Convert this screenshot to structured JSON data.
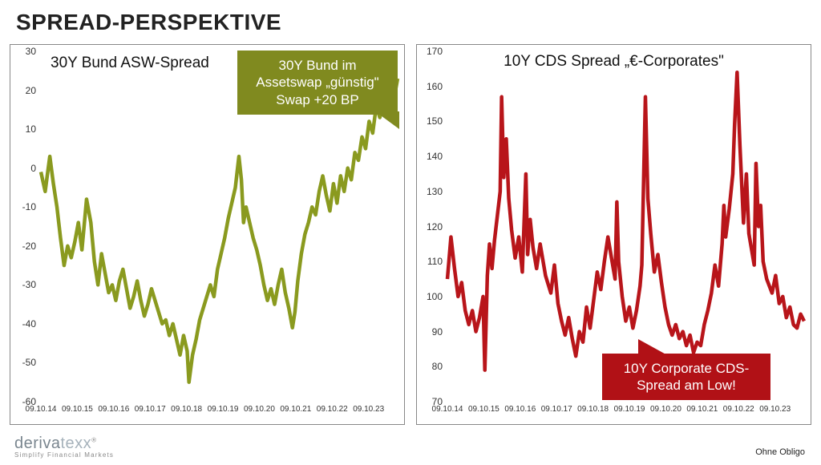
{
  "page": {
    "title": "SPREAD-PERSPEKTIVE"
  },
  "logo": {
    "part1": "deriva",
    "part2": "texx",
    "tagline": "Simplify Financial Markets"
  },
  "disclaimer": "Ohne Obligo",
  "left_chart": {
    "type": "line",
    "title": "30Y Bund ASW-Spread",
    "title_fontsize": 19,
    "line_color": "#8a9a1f",
    "line_width": 2,
    "background_color": "#ffffff",
    "border_color": "#888888",
    "ylim": [
      -60,
      30
    ],
    "ytick_step": 10,
    "yticks": [
      -60,
      -50,
      -40,
      -30,
      -20,
      -10,
      0,
      10,
      20,
      30
    ],
    "xticks": [
      "09.10.14",
      "09.10.15",
      "09.10.16",
      "09.10.17",
      "09.10.18",
      "09.10.19",
      "09.10.20",
      "09.10.21",
      "09.10.22",
      "09.10.23"
    ],
    "callout": {
      "lines": [
        "30Y Bund im",
        "Assetswap „günstig\"",
        "Swap +20 BP"
      ],
      "bg": "#808a1f"
    },
    "series": [
      {
        "x": 0.0,
        "y": -1
      },
      {
        "x": 0.012,
        "y": -6
      },
      {
        "x": 0.025,
        "y": 3
      },
      {
        "x": 0.035,
        "y": -4
      },
      {
        "x": 0.045,
        "y": -10
      },
      {
        "x": 0.055,
        "y": -18
      },
      {
        "x": 0.065,
        "y": -25
      },
      {
        "x": 0.075,
        "y": -20
      },
      {
        "x": 0.085,
        "y": -23
      },
      {
        "x": 0.095,
        "y": -19
      },
      {
        "x": 0.105,
        "y": -14
      },
      {
        "x": 0.115,
        "y": -21
      },
      {
        "x": 0.128,
        "y": -8
      },
      {
        "x": 0.14,
        "y": -14
      },
      {
        "x": 0.15,
        "y": -24
      },
      {
        "x": 0.16,
        "y": -30
      },
      {
        "x": 0.17,
        "y": -22
      },
      {
        "x": 0.18,
        "y": -27
      },
      {
        "x": 0.19,
        "y": -32
      },
      {
        "x": 0.2,
        "y": -30
      },
      {
        "x": 0.21,
        "y": -34
      },
      {
        "x": 0.22,
        "y": -29
      },
      {
        "x": 0.23,
        "y": -26
      },
      {
        "x": 0.24,
        "y": -31
      },
      {
        "x": 0.25,
        "y": -36
      },
      {
        "x": 0.26,
        "y": -33
      },
      {
        "x": 0.27,
        "y": -29
      },
      {
        "x": 0.28,
        "y": -34
      },
      {
        "x": 0.29,
        "y": -38
      },
      {
        "x": 0.3,
        "y": -35
      },
      {
        "x": 0.31,
        "y": -31
      },
      {
        "x": 0.32,
        "y": -34
      },
      {
        "x": 0.33,
        "y": -37
      },
      {
        "x": 0.34,
        "y": -40
      },
      {
        "x": 0.35,
        "y": -39
      },
      {
        "x": 0.36,
        "y": -43
      },
      {
        "x": 0.37,
        "y": -40
      },
      {
        "x": 0.38,
        "y": -44
      },
      {
        "x": 0.39,
        "y": -48
      },
      {
        "x": 0.4,
        "y": -43
      },
      {
        "x": 0.41,
        "y": -47
      },
      {
        "x": 0.415,
        "y": -55
      },
      {
        "x": 0.425,
        "y": -48
      },
      {
        "x": 0.435,
        "y": -44
      },
      {
        "x": 0.445,
        "y": -39
      },
      {
        "x": 0.455,
        "y": -36
      },
      {
        "x": 0.465,
        "y": -33
      },
      {
        "x": 0.475,
        "y": -30
      },
      {
        "x": 0.485,
        "y": -33
      },
      {
        "x": 0.495,
        "y": -26
      },
      {
        "x": 0.505,
        "y": -22
      },
      {
        "x": 0.515,
        "y": -18
      },
      {
        "x": 0.525,
        "y": -13
      },
      {
        "x": 0.535,
        "y": -9
      },
      {
        "x": 0.545,
        "y": -5
      },
      {
        "x": 0.555,
        "y": 3
      },
      {
        "x": 0.562,
        "y": -3
      },
      {
        "x": 0.568,
        "y": -14
      },
      {
        "x": 0.575,
        "y": -10
      },
      {
        "x": 0.585,
        "y": -14
      },
      {
        "x": 0.595,
        "y": -18
      },
      {
        "x": 0.605,
        "y": -21
      },
      {
        "x": 0.615,
        "y": -25
      },
      {
        "x": 0.625,
        "y": -30
      },
      {
        "x": 0.635,
        "y": -34
      },
      {
        "x": 0.645,
        "y": -31
      },
      {
        "x": 0.655,
        "y": -35
      },
      {
        "x": 0.665,
        "y": -30
      },
      {
        "x": 0.675,
        "y": -26
      },
      {
        "x": 0.685,
        "y": -32
      },
      {
        "x": 0.695,
        "y": -36
      },
      {
        "x": 0.705,
        "y": -41
      },
      {
        "x": 0.712,
        "y": -37
      },
      {
        "x": 0.72,
        "y": -29
      },
      {
        "x": 0.73,
        "y": -22
      },
      {
        "x": 0.74,
        "y": -17
      },
      {
        "x": 0.75,
        "y": -14
      },
      {
        "x": 0.76,
        "y": -10
      },
      {
        "x": 0.77,
        "y": -12
      },
      {
        "x": 0.78,
        "y": -6
      },
      {
        "x": 0.79,
        "y": -2
      },
      {
        "x": 0.8,
        "y": -7
      },
      {
        "x": 0.81,
        "y": -11
      },
      {
        "x": 0.82,
        "y": -4
      },
      {
        "x": 0.83,
        "y": -9
      },
      {
        "x": 0.84,
        "y": -2
      },
      {
        "x": 0.85,
        "y": -6
      },
      {
        "x": 0.86,
        "y": 0
      },
      {
        "x": 0.87,
        "y": -3
      },
      {
        "x": 0.88,
        "y": 4
      },
      {
        "x": 0.89,
        "y": 2
      },
      {
        "x": 0.9,
        "y": 8
      },
      {
        "x": 0.91,
        "y": 5
      },
      {
        "x": 0.92,
        "y": 12
      },
      {
        "x": 0.93,
        "y": 9
      },
      {
        "x": 0.94,
        "y": 16
      },
      {
        "x": 0.95,
        "y": 13
      },
      {
        "x": 0.96,
        "y": 18
      },
      {
        "x": 0.97,
        "y": 14
      },
      {
        "x": 0.98,
        "y": 20
      },
      {
        "x": 0.99,
        "y": 18
      },
      {
        "x": 1.0,
        "y": 23
      }
    ]
  },
  "right_chart": {
    "type": "line",
    "title": "10Y CDS Spread „€-Corporates\"",
    "title_fontsize": 19,
    "line_color": "#b8151a",
    "line_width": 2,
    "background_color": "#ffffff",
    "border_color": "#888888",
    "ylim": [
      70,
      170
    ],
    "ytick_step": 10,
    "yticks": [
      70,
      80,
      90,
      100,
      110,
      120,
      130,
      140,
      150,
      160,
      170
    ],
    "xticks": [
      "09.10.14",
      "09.10.15",
      "09.10.16",
      "09.10.17",
      "09.10.18",
      "09.10.19",
      "09.10.20",
      "09.10.21",
      "09.10.22",
      "09.10.23"
    ],
    "callout": {
      "lines": [
        "10Y Corporate CDS-",
        "Spread am Low!"
      ],
      "bg": "#b11116"
    },
    "series": [
      {
        "x": 0.0,
        "y": 105
      },
      {
        "x": 0.01,
        "y": 117
      },
      {
        "x": 0.02,
        "y": 108
      },
      {
        "x": 0.03,
        "y": 100
      },
      {
        "x": 0.04,
        "y": 104
      },
      {
        "x": 0.05,
        "y": 96
      },
      {
        "x": 0.06,
        "y": 92
      },
      {
        "x": 0.07,
        "y": 96
      },
      {
        "x": 0.08,
        "y": 90
      },
      {
        "x": 0.09,
        "y": 94
      },
      {
        "x": 0.1,
        "y": 100
      },
      {
        "x": 0.105,
        "y": 79
      },
      {
        "x": 0.112,
        "y": 106
      },
      {
        "x": 0.118,
        "y": 115
      },
      {
        "x": 0.125,
        "y": 108
      },
      {
        "x": 0.132,
        "y": 116
      },
      {
        "x": 0.14,
        "y": 123
      },
      {
        "x": 0.148,
        "y": 130
      },
      {
        "x": 0.152,
        "y": 157
      },
      {
        "x": 0.158,
        "y": 134
      },
      {
        "x": 0.165,
        "y": 145
      },
      {
        "x": 0.172,
        "y": 128
      },
      {
        "x": 0.18,
        "y": 119
      },
      {
        "x": 0.19,
        "y": 111
      },
      {
        "x": 0.2,
        "y": 117
      },
      {
        "x": 0.21,
        "y": 107
      },
      {
        "x": 0.22,
        "y": 135
      },
      {
        "x": 0.225,
        "y": 112
      },
      {
        "x": 0.232,
        "y": 122
      },
      {
        "x": 0.24,
        "y": 114
      },
      {
        "x": 0.25,
        "y": 108
      },
      {
        "x": 0.26,
        "y": 115
      },
      {
        "x": 0.275,
        "y": 106
      },
      {
        "x": 0.29,
        "y": 101
      },
      {
        "x": 0.3,
        "y": 109
      },
      {
        "x": 0.31,
        "y": 98
      },
      {
        "x": 0.32,
        "y": 93
      },
      {
        "x": 0.33,
        "y": 89
      },
      {
        "x": 0.34,
        "y": 94
      },
      {
        "x": 0.35,
        "y": 88
      },
      {
        "x": 0.36,
        "y": 83
      },
      {
        "x": 0.37,
        "y": 90
      },
      {
        "x": 0.38,
        "y": 87
      },
      {
        "x": 0.39,
        "y": 97
      },
      {
        "x": 0.4,
        "y": 91
      },
      {
        "x": 0.41,
        "y": 99
      },
      {
        "x": 0.42,
        "y": 107
      },
      {
        "x": 0.43,
        "y": 102
      },
      {
        "x": 0.44,
        "y": 110
      },
      {
        "x": 0.45,
        "y": 117
      },
      {
        "x": 0.46,
        "y": 111
      },
      {
        "x": 0.47,
        "y": 105
      },
      {
        "x": 0.475,
        "y": 127
      },
      {
        "x": 0.48,
        "y": 110
      },
      {
        "x": 0.49,
        "y": 100
      },
      {
        "x": 0.5,
        "y": 93
      },
      {
        "x": 0.51,
        "y": 97
      },
      {
        "x": 0.52,
        "y": 91
      },
      {
        "x": 0.53,
        "y": 96
      },
      {
        "x": 0.54,
        "y": 103
      },
      {
        "x": 0.545,
        "y": 109
      },
      {
        "x": 0.555,
        "y": 157
      },
      {
        "x": 0.562,
        "y": 128
      },
      {
        "x": 0.57,
        "y": 118
      },
      {
        "x": 0.58,
        "y": 107
      },
      {
        "x": 0.59,
        "y": 112
      },
      {
        "x": 0.6,
        "y": 104
      },
      {
        "x": 0.61,
        "y": 97
      },
      {
        "x": 0.62,
        "y": 92
      },
      {
        "x": 0.63,
        "y": 89
      },
      {
        "x": 0.64,
        "y": 92
      },
      {
        "x": 0.65,
        "y": 88
      },
      {
        "x": 0.66,
        "y": 90
      },
      {
        "x": 0.67,
        "y": 86
      },
      {
        "x": 0.68,
        "y": 89
      },
      {
        "x": 0.69,
        "y": 84
      },
      {
        "x": 0.7,
        "y": 87
      },
      {
        "x": 0.71,
        "y": 86
      },
      {
        "x": 0.72,
        "y": 92
      },
      {
        "x": 0.73,
        "y": 96
      },
      {
        "x": 0.74,
        "y": 101
      },
      {
        "x": 0.75,
        "y": 109
      },
      {
        "x": 0.76,
        "y": 103
      },
      {
        "x": 0.77,
        "y": 115
      },
      {
        "x": 0.775,
        "y": 126
      },
      {
        "x": 0.78,
        "y": 117
      },
      {
        "x": 0.79,
        "y": 125
      },
      {
        "x": 0.8,
        "y": 135
      },
      {
        "x": 0.805,
        "y": 149
      },
      {
        "x": 0.812,
        "y": 164
      },
      {
        "x": 0.82,
        "y": 143
      },
      {
        "x": 0.83,
        "y": 121
      },
      {
        "x": 0.838,
        "y": 135
      },
      {
        "x": 0.845,
        "y": 118
      },
      {
        "x": 0.85,
        "y": 115
      },
      {
        "x": 0.86,
        "y": 109
      },
      {
        "x": 0.865,
        "y": 138
      },
      {
        "x": 0.872,
        "y": 120
      },
      {
        "x": 0.878,
        "y": 126
      },
      {
        "x": 0.885,
        "y": 110
      },
      {
        "x": 0.895,
        "y": 105
      },
      {
        "x": 0.91,
        "y": 101
      },
      {
        "x": 0.92,
        "y": 106
      },
      {
        "x": 0.93,
        "y": 98
      },
      {
        "x": 0.94,
        "y": 100
      },
      {
        "x": 0.95,
        "y": 94
      },
      {
        "x": 0.96,
        "y": 97
      },
      {
        "x": 0.97,
        "y": 92
      },
      {
        "x": 0.98,
        "y": 91
      },
      {
        "x": 0.99,
        "y": 95
      },
      {
        "x": 1.0,
        "y": 93
      }
    ]
  }
}
